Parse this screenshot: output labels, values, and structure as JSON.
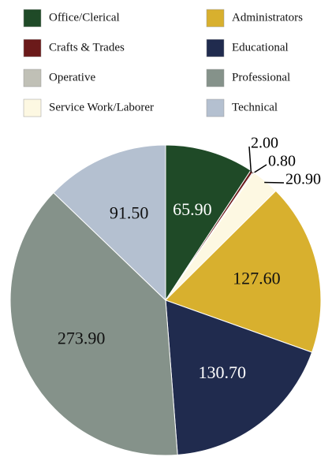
{
  "chart_data": {
    "type": "pie",
    "categories": [
      "Office/Clerical",
      "Crafts & Trades",
      "Operative",
      "Service Work/Laborer",
      "Administrators",
      "Educational",
      "Professional",
      "Technical"
    ],
    "values": [
      65.9,
      2.0,
      0.8,
      20.9,
      127.6,
      130.7,
      273.9,
      91.5
    ],
    "value_labels": [
      "65.90",
      "2.00",
      "0.80",
      "20.90",
      "127.60",
      "130.70",
      "273.90",
      "91.50"
    ],
    "colors": [
      "#1f4a27",
      "#6b1a1a",
      "#c0c0b6",
      "#fdf8e2",
      "#d8b02e",
      "#202b4e",
      "#85928a",
      "#b4c0d0"
    ],
    "legend": "top"
  }
}
